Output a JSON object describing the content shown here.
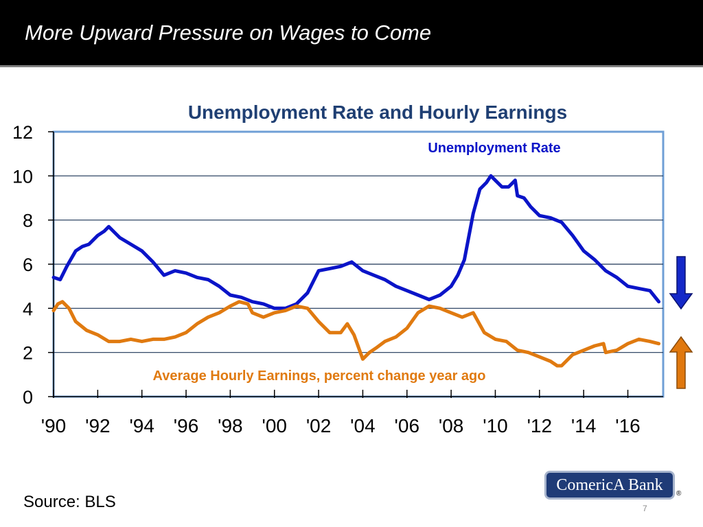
{
  "slide": {
    "title": "More Upward Pressure on Wages to Come",
    "source": "Source: BLS",
    "page_number": "7",
    "logo_text": "ComericA Bank",
    "registered_mark": "®"
  },
  "colors": {
    "unemployment": "#0a14c8",
    "earnings": "#e07a10",
    "title_blue": "#1f3f73",
    "frame": "#6f9fd6",
    "header_bg": "#000000"
  },
  "chart_data": {
    "type": "line",
    "title": "Unemployment  Rate and Hourly Earnings",
    "xlabel": "",
    "ylabel": "",
    "xlim": [
      1990.0,
      2017.6
    ],
    "ylim": [
      0,
      12
    ],
    "y_ticks": [
      0,
      2,
      4,
      6,
      8,
      10,
      12
    ],
    "y_tick_labels": [
      "0",
      "2",
      "4",
      "6",
      "8",
      "10",
      "12"
    ],
    "x_ticks": [
      1990,
      1992,
      1994,
      1996,
      1998,
      2000,
      2002,
      2004,
      2006,
      2008,
      2010,
      2012,
      2014,
      2016
    ],
    "x_tick_labels": [
      "'90",
      "'92",
      "'94",
      "'96",
      "'98",
      "'00",
      "'02",
      "'04",
      "'06",
      "'08",
      "'10",
      "'12",
      "'14",
      "'16"
    ],
    "grid": true,
    "series": [
      {
        "name": "Unemployment Rate",
        "label": "Unemployment Rate",
        "color": "#0a14c8",
        "x": [
          1990.0,
          1990.3,
          1990.6,
          1991.0,
          1991.3,
          1991.6,
          1992.0,
          1992.3,
          1992.5,
          1992.8,
          1993.0,
          1993.5,
          1994.0,
          1994.5,
          1995.0,
          1995.5,
          1996.0,
          1996.5,
          1997.0,
          1997.5,
          1998.0,
          1998.5,
          1999.0,
          1999.5,
          2000.0,
          2000.5,
          2001.0,
          2001.5,
          2002.0,
          2002.5,
          2003.0,
          2003.5,
          2004.0,
          2004.5,
          2005.0,
          2005.5,
          2006.0,
          2006.5,
          2007.0,
          2007.5,
          2008.0,
          2008.3,
          2008.6,
          2009.0,
          2009.3,
          2009.6,
          2009.8,
          2010.0,
          2010.3,
          2010.6,
          2010.9,
          2011.0,
          2011.3,
          2011.6,
          2012.0,
          2012.5,
          2013.0,
          2013.5,
          2014.0,
          2014.5,
          2015.0,
          2015.5,
          2016.0,
          2016.5,
          2017.0,
          2017.4
        ],
        "y": [
          5.4,
          5.3,
          5.9,
          6.6,
          6.8,
          6.9,
          7.3,
          7.5,
          7.7,
          7.4,
          7.2,
          6.9,
          6.6,
          6.1,
          5.5,
          5.7,
          5.6,
          5.4,
          5.3,
          5.0,
          4.6,
          4.5,
          4.3,
          4.2,
          4.0,
          4.0,
          4.2,
          4.7,
          5.7,
          5.8,
          5.9,
          6.1,
          5.7,
          5.5,
          5.3,
          5.0,
          4.8,
          4.6,
          4.4,
          4.6,
          5.0,
          5.5,
          6.2,
          8.3,
          9.4,
          9.7,
          10.0,
          9.8,
          9.5,
          9.5,
          9.8,
          9.1,
          9.0,
          8.6,
          8.2,
          8.1,
          7.9,
          7.3,
          6.6,
          6.2,
          5.7,
          5.4,
          5.0,
          4.9,
          4.8,
          4.3
        ]
      },
      {
        "name": "Average Hourly Earnings, percent change year ago",
        "label": "Average Hourly Earnings, percent change year ago",
        "color": "#e07a10",
        "x": [
          1990.0,
          1990.2,
          1990.4,
          1990.7,
          1991.0,
          1991.5,
          1992.0,
          1992.5,
          1993.0,
          1993.5,
          1994.0,
          1994.5,
          1995.0,
          1995.5,
          1996.0,
          1996.5,
          1997.0,
          1997.5,
          1998.0,
          1998.4,
          1998.8,
          1999.0,
          1999.5,
          2000.0,
          2000.5,
          2001.0,
          2001.5,
          2002.0,
          2002.5,
          2003.0,
          2003.3,
          2003.6,
          2004.0,
          2004.3,
          2004.6,
          2005.0,
          2005.5,
          2006.0,
          2006.5,
          2007.0,
          2007.5,
          2008.0,
          2008.5,
          2009.0,
          2009.5,
          2010.0,
          2010.5,
          2011.0,
          2011.5,
          2012.0,
          2012.5,
          2012.8,
          2013.0,
          2013.5,
          2014.0,
          2014.5,
          2014.9,
          2015.0,
          2015.5,
          2016.0,
          2016.5,
          2017.0,
          2017.4
        ],
        "y": [
          3.9,
          4.2,
          4.3,
          4.0,
          3.4,
          3.0,
          2.8,
          2.5,
          2.5,
          2.6,
          2.5,
          2.6,
          2.6,
          2.7,
          2.9,
          3.3,
          3.6,
          3.8,
          4.1,
          4.3,
          4.2,
          3.8,
          3.6,
          3.8,
          3.9,
          4.1,
          4.0,
          3.4,
          2.9,
          2.9,
          3.3,
          2.8,
          1.7,
          2.0,
          2.2,
          2.5,
          2.7,
          3.1,
          3.8,
          4.1,
          4.0,
          3.8,
          3.6,
          3.8,
          2.9,
          2.6,
          2.5,
          2.1,
          2.0,
          1.8,
          1.6,
          1.4,
          1.4,
          1.9,
          2.1,
          2.3,
          2.4,
          2.0,
          2.1,
          2.4,
          2.6,
          2.5,
          2.4
        ]
      }
    ]
  }
}
